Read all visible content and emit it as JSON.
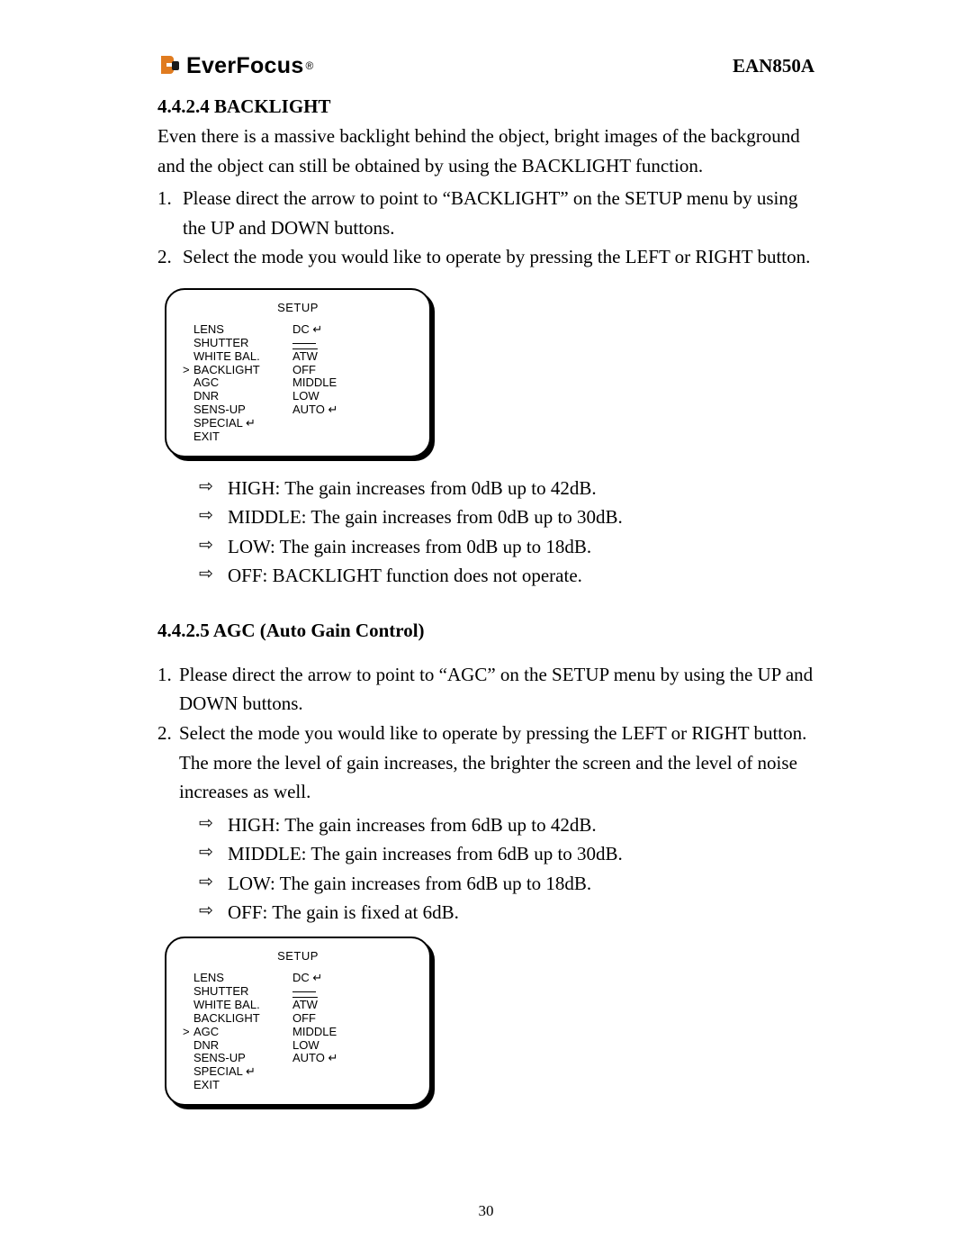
{
  "header": {
    "brand": "EverFocus",
    "registered": "®",
    "model": "EAN850A"
  },
  "section1": {
    "number_title": "4.4.2.4 BACKLIGHT",
    "intro": "Even there is a massive backlight behind the object, bright images of the background and the object can still be obtained by using the BACKLIGHT function.",
    "steps": [
      "Please direct the arrow to point to “BACKLIGHT” on the SETUP menu by using the UP and DOWN buttons.",
      "Select the mode you would like to operate by pressing the LEFT or RIGHT button."
    ],
    "notes": [
      "HIGH: The gain increases from 0dB up to 42dB.",
      "MIDDLE: The gain increases from 0dB up to 30dB.",
      "LOW: The gain increases from 0dB up to 18dB.",
      "OFF: BACKLIGHT function does not operate."
    ]
  },
  "setup1": {
    "title": "SETUP",
    "rows": [
      {
        "caret": "",
        "label": "LENS",
        "value": "DC ↵"
      },
      {
        "caret": "",
        "label": "SHUTTER",
        "value": "—"
      },
      {
        "caret": "",
        "label": "WHITE BAL.",
        "value": "ATW"
      },
      {
        "caret": ">",
        "label": "BACKLIGHT",
        "value": "OFF"
      },
      {
        "caret": "",
        "label": "AGC",
        "value": "MIDDLE"
      },
      {
        "caret": "",
        "label": "DNR",
        "value": "LOW"
      },
      {
        "caret": "",
        "label": "SENS-UP",
        "value": "AUTO ↵"
      },
      {
        "caret": "",
        "label": "SPECIAL ↵",
        "value": ""
      },
      {
        "caret": "",
        "label": "EXIT",
        "value": ""
      }
    ]
  },
  "section2": {
    "number_title": "4.4.2.5 AGC (Auto Gain Control)",
    "steps": [
      "Please direct the arrow to point to “AGC” on the SETUP menu by using the UP and DOWN buttons.",
      "Select the mode you would like to operate by pressing the LEFT or RIGHT button. The more the level of gain increases, the brighter the screen and the level of noise increases as well."
    ],
    "notes": [
      "HIGH: The gain increases from 6dB up to 42dB.",
      "MIDDLE: The gain increases from 6dB up to 30dB.",
      "LOW: The gain increases from 6dB up to 18dB.",
      "OFF: The gain is fixed at 6dB."
    ]
  },
  "setup2": {
    "title": "SETUP",
    "rows": [
      {
        "caret": "",
        "label": "LENS",
        "value": "DC ↵"
      },
      {
        "caret": "",
        "label": "SHUTTER",
        "value": "—"
      },
      {
        "caret": "",
        "label": "WHITE BAL.",
        "value": "ATW"
      },
      {
        "caret": "",
        "label": "BACKLIGHT",
        "value": "OFF"
      },
      {
        "caret": ">",
        "label": "AGC",
        "value": "MIDDLE"
      },
      {
        "caret": "",
        "label": "DNR",
        "value": "LOW"
      },
      {
        "caret": "",
        "label": "SENS-UP",
        "value": "AUTO ↵"
      },
      {
        "caret": "",
        "label": "SPECIAL ↵",
        "value": ""
      },
      {
        "caret": "",
        "label": "EXIT",
        "value": ""
      }
    ]
  },
  "page_number": "30",
  "logo_colors": {
    "orange": "#e07b1f",
    "dark": "#1a1a1a"
  }
}
